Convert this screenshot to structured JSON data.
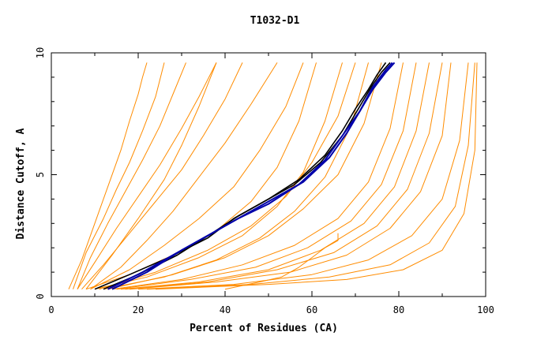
{
  "chart_data": {
    "type": "line",
    "title": "T1032-D1",
    "xlabel": "Percent of Residues (CA)",
    "ylabel": "Distance Cutoff, A",
    "xlim": [
      0,
      100
    ],
    "ylim": [
      0,
      10
    ],
    "xticks": [
      "0",
      "20",
      "40",
      "60",
      "80",
      "100"
    ],
    "yticks": [
      "0",
      "5",
      "10"
    ],
    "grid": false,
    "legend": "none",
    "colors": {
      "models": "#ff8c00",
      "highlight_dark": "#000000",
      "highlight_blue": "#0000aa"
    },
    "series": [
      {
        "group": "orange",
        "x": [
          4,
          7,
          10,
          13,
          16,
          18,
          20,
          21,
          22
        ],
        "y": [
          0.3,
          1.5,
          3,
          4.5,
          6,
          7.2,
          8.3,
          9,
          9.6
        ]
      },
      {
        "group": "orange",
        "x": [
          5,
          8,
          12,
          15,
          18,
          21,
          24,
          26
        ],
        "y": [
          0.3,
          1.8,
          3.2,
          4.4,
          5.5,
          6.8,
          8.2,
          9.6
        ]
      },
      {
        "group": "orange",
        "x": [
          6,
          9,
          13,
          17,
          21,
          25,
          28,
          31
        ],
        "y": [
          0.3,
          1.6,
          3,
          4.3,
          5.6,
          7,
          8.3,
          9.6
        ]
      },
      {
        "group": "orange",
        "x": [
          6,
          10,
          15,
          20,
          25,
          30,
          34,
          38
        ],
        "y": [
          0.3,
          1.4,
          2.8,
          4.1,
          5.4,
          6.9,
          8.2,
          9.6
        ]
      },
      {
        "group": "orange",
        "x": [
          7,
          12,
          18,
          24,
          30,
          35,
          40,
          44
        ],
        "y": [
          0.3,
          1.3,
          2.6,
          3.9,
          5.2,
          6.6,
          8.1,
          9.6
        ]
      },
      {
        "group": "orange",
        "x": [
          8,
          14,
          20,
          26,
          30,
          34,
          38
        ],
        "y": [
          0.3,
          1.7,
          3.2,
          4.8,
          6.2,
          7.8,
          9.6
        ]
      },
      {
        "group": "orange",
        "x": [
          9,
          16,
          22,
          28,
          34,
          40,
          46,
          52
        ],
        "y": [
          0.3,
          1.2,
          2.3,
          3.5,
          4.9,
          6.3,
          7.9,
          9.6
        ]
      },
      {
        "group": "orange",
        "x": [
          9,
          18,
          26,
          34,
          42,
          48,
          54,
          58
        ],
        "y": [
          0.3,
          1.1,
          2.1,
          3.2,
          4.5,
          6,
          7.8,
          9.6
        ]
      },
      {
        "group": "orange",
        "x": [
          8,
          18,
          28,
          38,
          46,
          52,
          57,
          61
        ],
        "y": [
          0.3,
          0.9,
          1.7,
          2.7,
          3.9,
          5.3,
          7.2,
          9.6
        ]
      },
      {
        "group": "orange",
        "x": [
          10,
          22,
          34,
          44,
          52,
          58,
          63,
          67
        ],
        "y": [
          0.3,
          0.8,
          1.6,
          2.5,
          3.7,
          5.1,
          7.2,
          9.6
        ]
      },
      {
        "group": "orange",
        "x": [
          12,
          26,
          38,
          48,
          56,
          63,
          69,
          73
        ],
        "y": [
          0.3,
          0.8,
          1.5,
          2.4,
          3.5,
          4.9,
          7,
          9.6
        ]
      },
      {
        "group": "orange",
        "x": [
          14,
          30,
          44,
          56,
          66,
          73,
          78,
          81
        ],
        "y": [
          0.3,
          0.7,
          1.3,
          2.1,
          3.2,
          4.7,
          6.9,
          9.6
        ]
      },
      {
        "group": "orange",
        "x": [
          16,
          34,
          50,
          62,
          72,
          79,
          84,
          87
        ],
        "y": [
          0.3,
          0.6,
          1.1,
          1.9,
          3,
          4.5,
          6.8,
          9.6
        ]
      },
      {
        "group": "orange",
        "x": [
          18,
          38,
          55,
          68,
          78,
          85,
          90,
          92
        ],
        "y": [
          0.3,
          0.6,
          1,
          1.7,
          2.8,
          4.3,
          6.6,
          9.6
        ]
      },
      {
        "group": "orange",
        "x": [
          20,
          42,
          60,
          73,
          83,
          90,
          94,
          96
        ],
        "y": [
          0.3,
          0.5,
          0.9,
          1.5,
          2.5,
          4,
          6.4,
          9.6
        ]
      },
      {
        "group": "orange",
        "x": [
          22,
          46,
          64,
          78,
          87,
          93,
          96,
          97.5
        ],
        "y": [
          0.3,
          0.5,
          0.8,
          1.3,
          2.2,
          3.7,
          6.2,
          9.6
        ]
      },
      {
        "group": "orange",
        "x": [
          24,
          50,
          68,
          81,
          90,
          95,
          97.5,
          98
        ],
        "y": [
          0.3,
          0.5,
          0.7,
          1.1,
          1.9,
          3.4,
          6,
          9.6
        ]
      },
      {
        "group": "orange",
        "x": [
          40,
          48,
          53,
          57,
          60,
          63,
          66,
          66
        ],
        "y": [
          0.3,
          0.6,
          0.8,
          1.2,
          1.6,
          2,
          2.3,
          2.6
        ]
      },
      {
        "group": "orange",
        "x": [
          11,
          24,
          36,
          46,
          54,
          60,
          66,
          70
        ],
        "y": [
          0.3,
          1,
          1.9,
          2.9,
          4.1,
          5.5,
          7.4,
          9.6
        ]
      },
      {
        "group": "orange",
        "x": [
          13,
          28,
          40,
          50,
          58,
          66,
          72,
          76
        ],
        "y": [
          0.3,
          0.9,
          1.6,
          2.5,
          3.6,
          5,
          7.1,
          9.6
        ]
      },
      {
        "group": "orange",
        "x": [
          15,
          32,
          47,
          59,
          69,
          76,
          81,
          84
        ],
        "y": [
          0.3,
          0.7,
          1.2,
          2,
          3.1,
          4.6,
          6.8,
          9.6
        ]
      },
      {
        "group": "orange",
        "x": [
          17,
          36,
          52,
          65,
          75,
          82,
          87,
          90
        ],
        "y": [
          0.3,
          0.6,
          1.1,
          1.8,
          2.9,
          4.4,
          6.7,
          9.6
        ]
      },
      {
        "group": "dark",
        "x": [
          10,
          18,
          27,
          36,
          42,
          49,
          56,
          62,
          67,
          70,
          72,
          74,
          76,
          78
        ],
        "y": [
          0.3,
          0.9,
          1.6,
          2.4,
          3.2,
          3.9,
          4.6,
          5.5,
          6.6,
          7.5,
          8.1,
          8.7,
          9.2,
          9.6
        ]
      },
      {
        "group": "dark",
        "x": [
          12,
          20,
          29,
          37,
          43,
          50,
          57,
          63,
          67,
          70,
          73,
          75,
          77
        ],
        "y": [
          0.3,
          0.9,
          1.7,
          2.6,
          3.3,
          4,
          4.8,
          5.8,
          6.8,
          7.7,
          8.5,
          9.1,
          9.6
        ]
      },
      {
        "group": "blue",
        "x": [
          14,
          22,
          30,
          38,
          44,
          51,
          58,
          64,
          68,
          71,
          74,
          77,
          79
        ],
        "y": [
          0.3,
          1,
          1.9,
          2.7,
          3.3,
          4,
          4.7,
          5.7,
          6.7,
          7.6,
          8.5,
          9.2,
          9.6
        ]
      },
      {
        "group": "blue",
        "x": [
          13,
          21,
          29,
          37,
          43,
          50,
          57,
          63,
          67,
          71,
          74,
          77,
          78.5
        ],
        "y": [
          0.3,
          1,
          1.8,
          2.6,
          3.2,
          3.8,
          4.6,
          5.6,
          6.6,
          7.6,
          8.6,
          9.3,
          9.6
        ]
      }
    ]
  }
}
